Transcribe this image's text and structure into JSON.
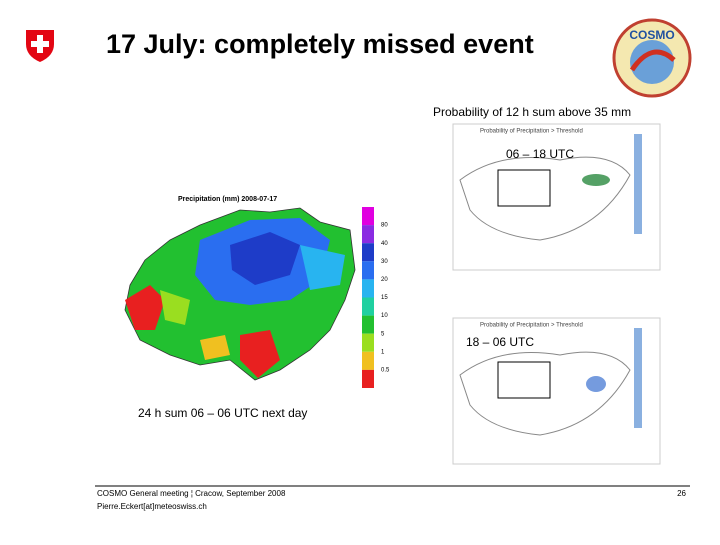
{
  "header": {
    "title": "17 July: completely missed event",
    "logo": "COSMO"
  },
  "left_map": {
    "title": "Precipitation (mm) 2008-07-17",
    "caption": "24 h sum 06 – 06 UTC next day",
    "legend": {
      "labels": [
        "80",
        "40",
        "30",
        "20",
        "15",
        "10",
        "5",
        "1",
        "0.5"
      ],
      "colors": [
        "#e000e0",
        "#8a2be2",
        "#1e3cc8",
        "#2a6ef0",
        "#28b4f0",
        "#20d0a0",
        "#22c030",
        "#9ade20",
        "#f0c020",
        "#e82020"
      ]
    }
  },
  "right_panel": {
    "heading": "Probability of 12 h sum above 35 mm",
    "maps": [
      {
        "title": "Probability of Precipitation > Threshold",
        "period": "06 – 18 UTC"
      },
      {
        "title": "Probability of Precipitation > Threshold",
        "period": "18 – 06 UTC"
      }
    ]
  },
  "footer": {
    "event": "COSMO General meeting ¦ Cracow, September 2008",
    "contact": "Pierre.Eckert[at]meteoswiss.ch",
    "page": "26"
  }
}
